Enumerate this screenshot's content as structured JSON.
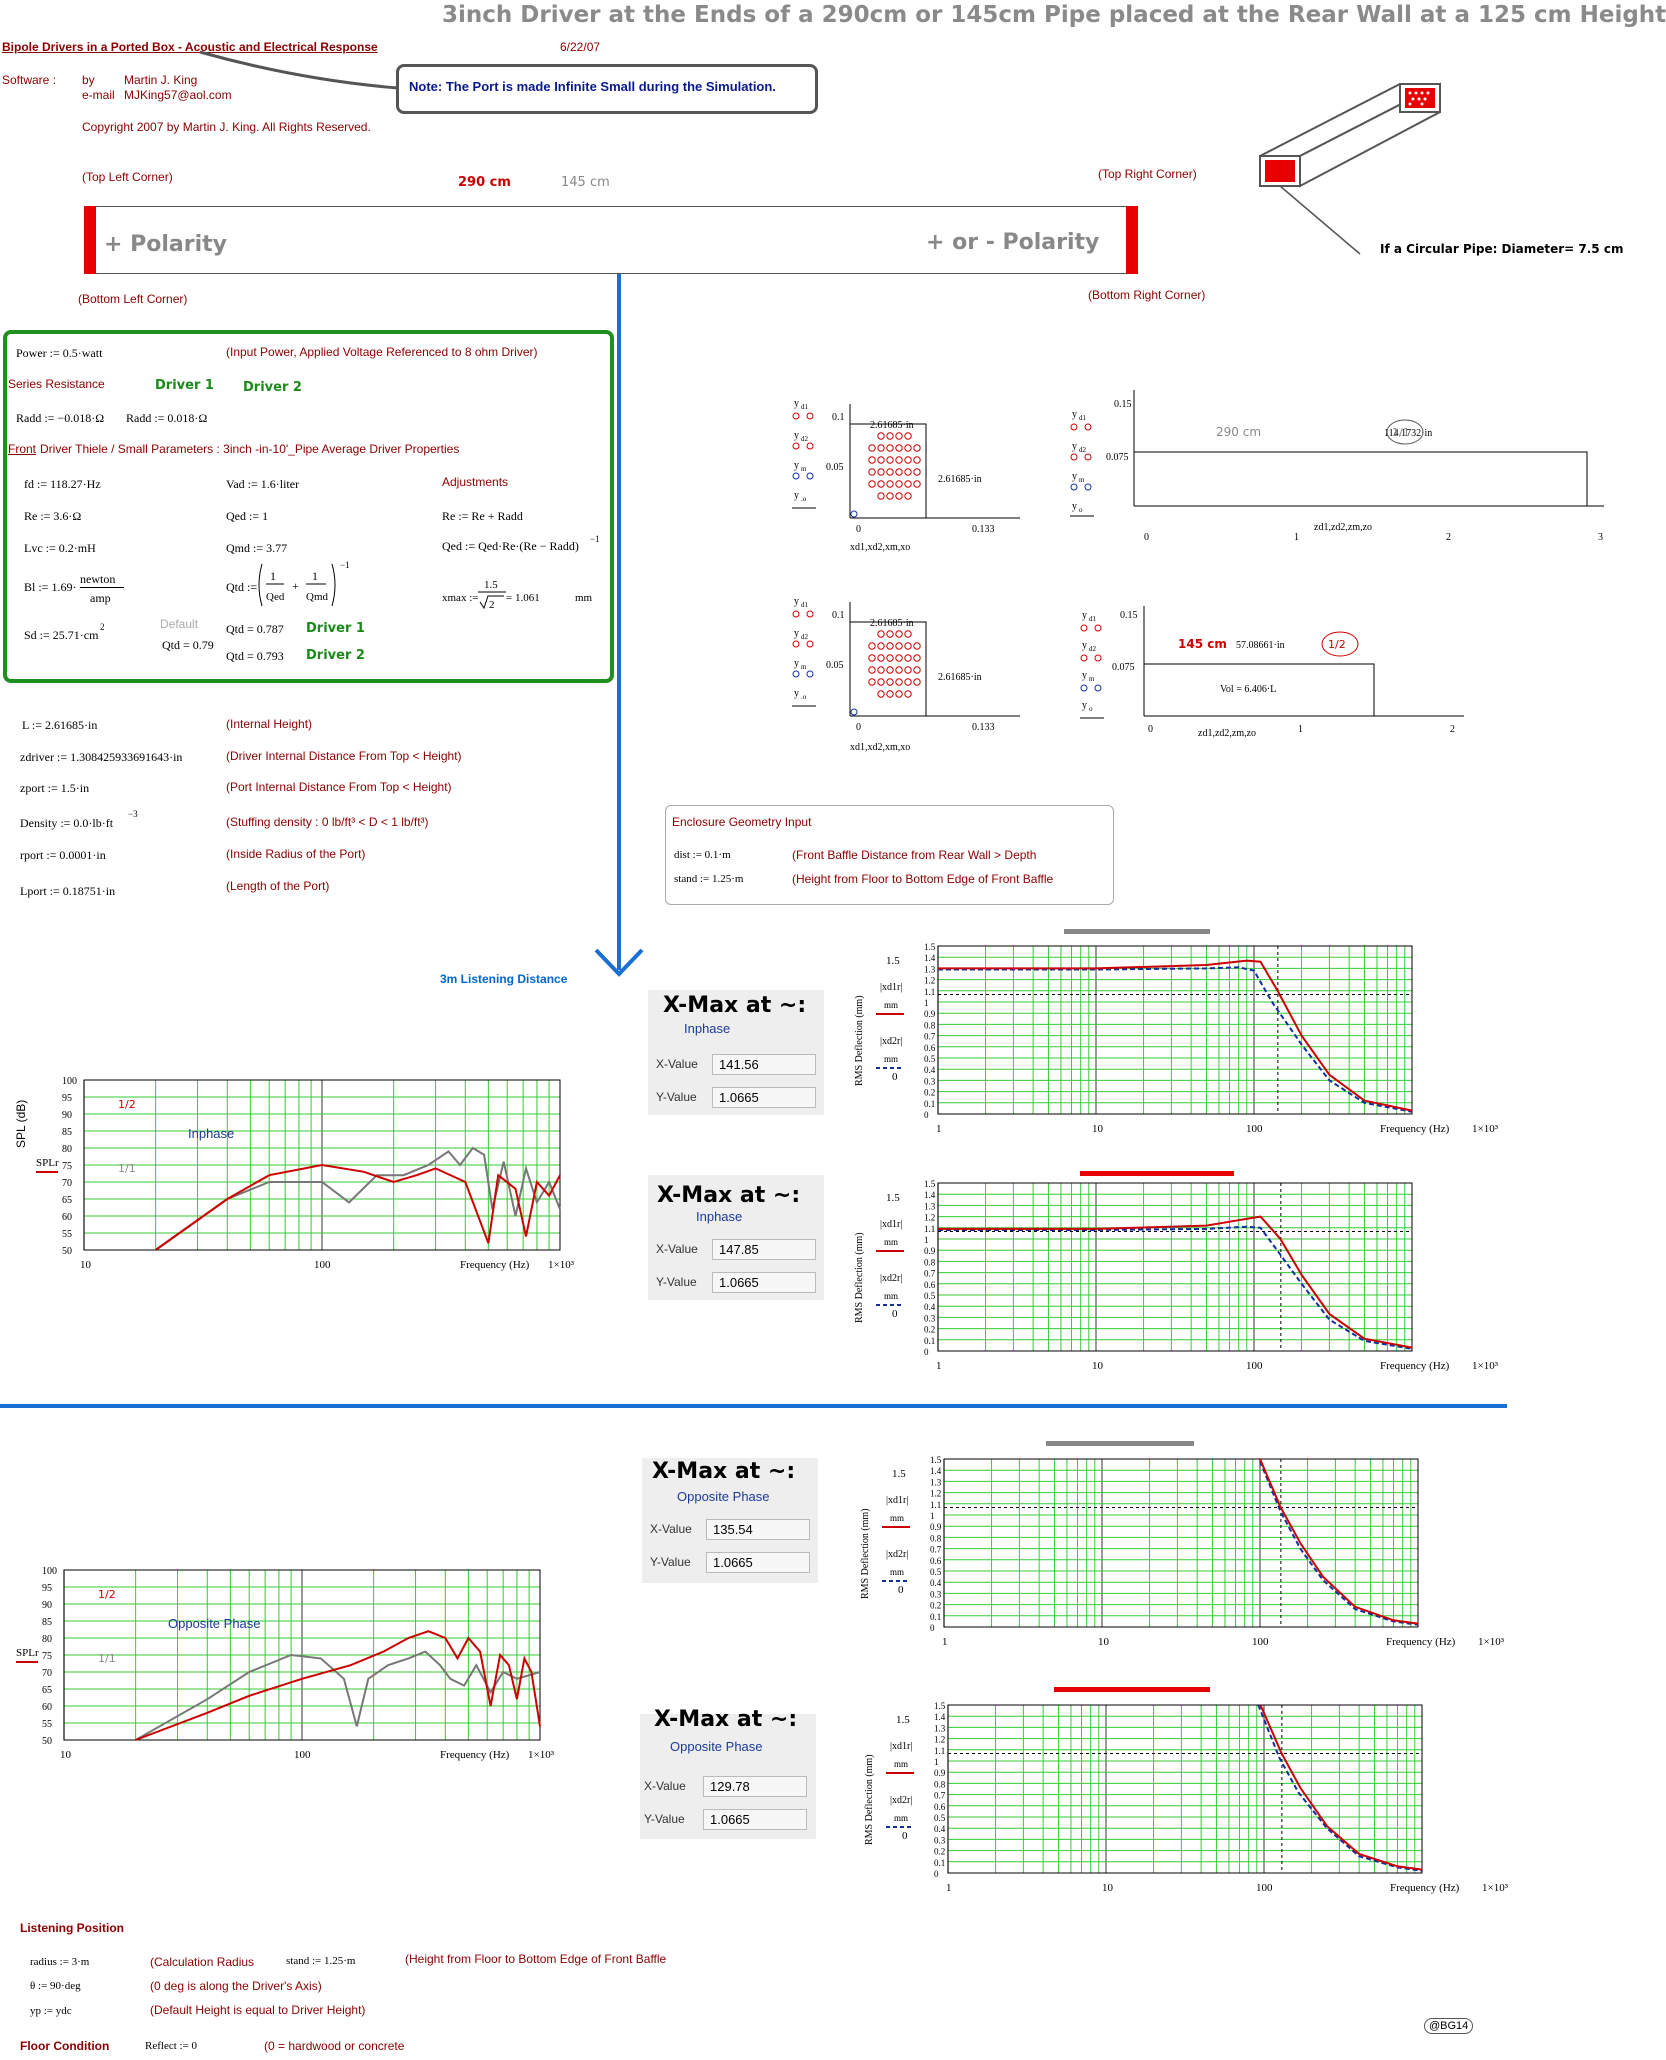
{
  "header": {
    "title": "3inch Driver at the Ends of a 290cm or 145cm Pipe placed at the Rear Wall at a 125 cm Height",
    "subtitle": "Bipole Drivers in a Ported Box - Acoustic and Electrical Response",
    "date": "6/22/07",
    "software_label": "Software :",
    "by_label": "by",
    "author": "Martin J. King",
    "email_label": "e-mail",
    "email": "MJKing57@aol.com",
    "copyright": "Copyright 2007 by Martin J. King. All Rights Reserved.",
    "note": "Note: The Port is made Infinite Small during the Simulation."
  },
  "pipe_diagram": {
    "top_left": "(Top Left Corner)",
    "top_right": "(Top Right Corner)",
    "bottom_left": "(Bottom Left Corner)",
    "bottom_right": "(Bottom Right Corner)",
    "length_a": "290 cm",
    "length_b": "145 cm",
    "left_label": "+ Polarity",
    "right_label": "+ or - Polarity",
    "diameter": "If a Circular Pipe: Diameter= 7.5 cm"
  },
  "params": {
    "power": "Power := 0.5·watt",
    "power_note": "(Input Power, Applied Voltage Referenced to 8 ohm Driver)",
    "series_resistance": "Series Resistance",
    "driver1": "Driver 1",
    "driver2": "Driver 2",
    "radd1": "Radd := −0.018·Ω",
    "radd2": "Radd := 0.018·Ω",
    "front_label": "Front",
    "front_desc": "Driver Thiele / Small Parameters : 3inch -in-10'_Pipe Average Driver Properties",
    "fd": "fd := 118.27·Hz",
    "vad": "Vad := 1.6·liter",
    "adjustments": "Adjustments",
    "re": "Re := 3.6·Ω",
    "qed": "Qed := 1",
    "re_adj": "Re := Re + Radd",
    "lvc": "Lvc := 0.2·mH",
    "qmd": "Qmd := 3.77",
    "qed_adj": "Qed := Qed·Re·(Re − Radd)",
    "bl": "Bl := 1.69·",
    "bl_unit_top": "newton",
    "bl_unit_bottom": "amp",
    "qtd": "Qtd :=",
    "xmax": "xmax :=",
    "xmax_val": "= 1.061",
    "xmax_unit": "mm",
    "sd": "Sd := 25.71·cm",
    "default_label": "Default",
    "qtd_default": "Qtd = 0.79",
    "qtd1": "Qtd = 0.787",
    "qtd2": "Qtd = 0.793",
    "qtd1_driver": "Driver 1",
    "qtd2_driver": "Driver 2"
  },
  "geometry": {
    "l": "L := 2.61685·in",
    "l_note": "(Internal Height)",
    "zdriver": "zdriver := 1.308425933691643·in",
    "zdriver_note": "(Driver Internal Distance From Top < Height)",
    "zport": "zport := 1.5·in",
    "zport_note": "(Port Internal Distance From Top < Height)",
    "density": "Density := 0.0·lb·ft",
    "density_note": "(Stuffing density : 0 lb/ft³ < D < 1 lb/ft³)",
    "rport": "rport := 0.0001·in",
    "rport_note": "(Inside Radius of the Port)",
    "lport": "Lport := 0.18751·in",
    "lport_note": "(Length of the Port)"
  },
  "enclosure": {
    "title": "Enclosure Geometry Input",
    "dist": "dist := 0.1·m",
    "dist_note": "(Front Baffle Distance from Rear Wall > Depth",
    "stand": "stand := 1.25·m",
    "stand_note": "(Height from Floor to Bottom Edge of Front Baffle"
  },
  "layout_plots": {
    "p1": {
      "ylabel": "yd1 yd2 ym yo",
      "xlabel": "xd1,xd2,xm,xo",
      "value": "2.61685·in",
      "side": "2.61685·in",
      "y1": "0.1",
      "y2": "0.05",
      "x0": "0",
      "x1": "0.133"
    },
    "p2": {
      "ylabel": "yd1 yd2 ym yo",
      "xlabel": "zd1,zd2,zm,zo",
      "len": "290 cm",
      "value": "114.1732·in",
      "badge": "1/1",
      "y1": "0.15",
      "y2": "0.075",
      "ticks": [
        "0",
        "1",
        "2",
        "3"
      ]
    },
    "p3": {
      "ylabel": "yd1 yd2 ym yo",
      "xlabel": "xd1,xd2,xm,xo",
      "value": "2.61685·in",
      "side": "2.61685·in",
      "y1": "0.1",
      "y2": "0.05",
      "x0": "0",
      "x1": "0.133"
    },
    "p4": {
      "ylabel": "yd1 yd2 ym yo",
      "xlabel": "zd1,zd2,zm,zo",
      "len": "145 cm",
      "value": "57.08661·in",
      "badge": "1/2",
      "vol": "Vol = 6.406·L",
      "y1": "0.15",
      "y2": "0.075",
      "ticks": [
        "0",
        "1",
        "2"
      ]
    }
  },
  "listening_distance": "3m Listening Distance",
  "spl_charts": [
    {
      "phase": "Inphase",
      "ylabel": "SPL (dB)",
      "series": "SPLr",
      "badge_a": "1/2",
      "badge_b": "1/1",
      "yticks": [
        "100",
        "95",
        "90",
        "85",
        "80",
        "75",
        "70",
        "65",
        "60",
        "55",
        "50"
      ],
      "xticks": [
        "10",
        "100"
      ],
      "xlabel": "Frequency (Hz)",
      "xmax": "1×10³"
    },
    {
      "phase": "Opposite Phase",
      "ylabel": "",
      "series": "SPLr",
      "badge_a": "1/2",
      "badge_b": "1/1",
      "yticks": [
        "100",
        "95",
        "90",
        "85",
        "80",
        "75",
        "70",
        "65",
        "60",
        "55",
        "50"
      ],
      "xticks": [
        "10",
        "100"
      ],
      "xlabel": "Frequency (Hz)",
      "xmax": "1×10³"
    }
  ],
  "xmax_panels": [
    {
      "title": "X-Max at ~:",
      "phase": "Inphase",
      "xlabel": "X-Value",
      "xvalue": "141.56",
      "ylabel": "Y-Value",
      "yvalue": "1.0665"
    },
    {
      "title": "X-Max at ~:",
      "phase": "Inphase",
      "xlabel": "X-Value",
      "xvalue": "147.85",
      "ylabel": "Y-Value",
      "yvalue": "1.0665"
    },
    {
      "title": "X-Max at ~:",
      "phase": "Opposite Phase",
      "xlabel": "X-Value",
      "xvalue": "135.54",
      "ylabel": "Y-Value",
      "yvalue": "1.0665"
    },
    {
      "title": "X-Max at ~:",
      "phase": "Opposite Phase",
      "xlabel": "X-Value",
      "xvalue": "129.78",
      "ylabel": "Y-Value",
      "yvalue": "1.0665"
    }
  ],
  "deflection_chart_labels": {
    "ylabel": "RMS Deflection (mm)",
    "s1": "|xd1r|",
    "s2": "|xd2r|",
    "unit": "mm",
    "xlabel": "Frequency (Hz)",
    "xmax": "1×10³",
    "yticks": [
      "1.5",
      "1.4",
      "1.3",
      "1.2",
      "1.1",
      "1",
      "0.9",
      "0.8",
      "0.7",
      "0.6",
      "0.5",
      "0.4",
      "0.3",
      "0.2",
      "0.1",
      "0"
    ],
    "xticks": [
      "1",
      "10",
      "100"
    ]
  },
  "listening": {
    "title": "Listening Position",
    "radius": "radius := 3·m",
    "radius_note": "(Calculation Radius",
    "stand": "stand := 1.25·m",
    "stand_note": "(Height from Floor to Bottom Edge of Front Baffle",
    "theta": "θ := 90·deg",
    "theta_note": "(0 deg is along the Driver's Axis)",
    "yp": "yp := ydc",
    "yp_note": "(Default Height is equal to Driver Height)",
    "floor": "Floor Condition",
    "reflect": "Reflect := 0",
    "reflect_note": "(0 = hardwood or concrete",
    "badge": "@BG14"
  },
  "chart_data": [
    {
      "type": "line",
      "title": "",
      "xlabel": "Frequency (Hz)",
      "ylabel": "SPL (dB)",
      "xscale": "log",
      "xlim": [
        10,
        1000
      ],
      "ylim": [
        50,
        100
      ],
      "series": [
        {
          "name": "1/2",
          "color": "#cc0000",
          "points": [
            [
              20,
              50
            ],
            [
              40,
              65
            ],
            [
              60,
              72
            ],
            [
              100,
              75
            ],
            [
              150,
              73
            ],
            [
              200,
              70
            ],
            [
              250,
              72
            ],
            [
              300,
              74
            ],
            [
              400,
              70
            ],
            [
              500,
              52
            ],
            [
              550,
              72
            ],
            [
              650,
              68
            ],
            [
              720,
              54
            ],
            [
              800,
              70
            ],
            [
              900,
              66
            ],
            [
              1000,
              72
            ]
          ]
        },
        {
          "name": "1/1",
          "color": "#777777",
          "points": [
            [
              20,
              50
            ],
            [
              40,
              65
            ],
            [
              60,
              70
            ],
            [
              100,
              70
            ],
            [
              130,
              64
            ],
            [
              170,
              72
            ],
            [
              220,
              72
            ],
            [
              280,
              75
            ],
            [
              340,
              79
            ],
            [
              380,
              75
            ],
            [
              430,
              80
            ],
            [
              480,
              78
            ],
            [
              520,
              62
            ],
            [
              580,
              76
            ],
            [
              650,
              60
            ],
            [
              720,
              74
            ],
            [
              800,
              64
            ],
            [
              900,
              70
            ],
            [
              1000,
              62
            ]
          ]
        }
      ]
    },
    {
      "type": "line",
      "title": "",
      "xlabel": "Frequency (Hz)",
      "xscale": "log",
      "xlim": [
        10,
        1000
      ],
      "ylim": [
        50,
        100
      ],
      "series": [
        {
          "name": "1/2",
          "color": "#cc0000",
          "points": [
            [
              20,
              50
            ],
            [
              40,
              58
            ],
            [
              60,
              63
            ],
            [
              100,
              68
            ],
            [
              160,
              72
            ],
            [
              220,
              76
            ],
            [
              280,
              80
            ],
            [
              340,
              82
            ],
            [
              400,
              80
            ],
            [
              450,
              74
            ],
            [
              500,
              80
            ],
            [
              560,
              76
            ],
            [
              620,
              60
            ],
            [
              680,
              75
            ],
            [
              740,
              72
            ],
            [
              800,
              62
            ],
            [
              860,
              74
            ],
            [
              920,
              70
            ],
            [
              1000,
              54
            ]
          ]
        },
        {
          "name": "1/1",
          "color": "#777777",
          "points": [
            [
              20,
              50
            ],
            [
              40,
              62
            ],
            [
              60,
              70
            ],
            [
              90,
              75
            ],
            [
              120,
              74
            ],
            [
              150,
              68
            ],
            [
              170,
              54
            ],
            [
              190,
              68
            ],
            [
              230,
              72
            ],
            [
              280,
              74
            ],
            [
              330,
              76
            ],
            [
              380,
              72
            ],
            [
              420,
              68
            ],
            [
              480,
              66
            ],
            [
              540,
              72
            ],
            [
              620,
              64
            ],
            [
              700,
              70
            ],
            [
              800,
              68
            ],
            [
              1000,
              70
            ]
          ]
        }
      ]
    },
    {
      "type": "line",
      "xlabel": "Frequency (Hz)",
      "ylabel": "RMS Deflection (mm)",
      "xscale": "log",
      "xlim": [
        1,
        1000
      ],
      "ylim": [
        0,
        1.5
      ],
      "xmax_marker": 141.56,
      "series": [
        {
          "name": "|xd1r|",
          "color": "#cc0000",
          "points": [
            [
              1,
              1.3
            ],
            [
              10,
              1.3
            ],
            [
              50,
              1.33
            ],
            [
              90,
              1.37
            ],
            [
              110,
              1.36
            ],
            [
              141,
              1.1
            ],
            [
              200,
              0.7
            ],
            [
              300,
              0.35
            ],
            [
              500,
              0.12
            ],
            [
              1000,
              0.03
            ]
          ]
        },
        {
          "name": "|xd2r|",
          "color": "#1030a0",
          "points": [
            [
              1,
              1.29
            ],
            [
              10,
              1.29
            ],
            [
              50,
              1.3
            ],
            [
              80,
              1.31
            ],
            [
              100,
              1.28
            ],
            [
              130,
              1.0
            ],
            [
              200,
              0.62
            ],
            [
              300,
              0.3
            ],
            [
              500,
              0.1
            ],
            [
              1000,
              0.02
            ]
          ]
        }
      ]
    },
    {
      "type": "line",
      "xlabel": "Frequency (Hz)",
      "ylabel": "RMS Deflection (mm)",
      "xscale": "log",
      "xlim": [
        1,
        1000
      ],
      "ylim": [
        0,
        1.5
      ],
      "xmax_marker": 147.85,
      "series": [
        {
          "name": "|xd1r|",
          "color": "#cc0000",
          "points": [
            [
              1,
              1.09
            ],
            [
              10,
              1.09
            ],
            [
              50,
              1.12
            ],
            [
              90,
              1.18
            ],
            [
              110,
              1.2
            ],
            [
              147,
              1.0
            ],
            [
              200,
              0.68
            ],
            [
              300,
              0.33
            ],
            [
              500,
              0.11
            ],
            [
              1000,
              0.03
            ]
          ]
        },
        {
          "name": "|xd2r|",
          "color": "#1030a0",
          "points": [
            [
              1,
              1.08
            ],
            [
              10,
              1.08
            ],
            [
              50,
              1.09
            ],
            [
              90,
              1.11
            ],
            [
              110,
              1.1
            ],
            [
              140,
              0.9
            ],
            [
              200,
              0.6
            ],
            [
              300,
              0.28
            ],
            [
              500,
              0.09
            ],
            [
              1000,
              0.02
            ]
          ]
        }
      ]
    },
    {
      "type": "line",
      "xlabel": "Frequency (Hz)",
      "ylabel": "RMS Deflection (mm)",
      "xscale": "log",
      "xlim": [
        1,
        1000
      ],
      "ylim": [
        0,
        1.5
      ],
      "xmax_marker": 135.54,
      "series": [
        {
          "name": "|xd1r|",
          "color": "#cc0000",
          "points": [
            [
              100,
              1.5
            ],
            [
              135,
              1.07
            ],
            [
              180,
              0.75
            ],
            [
              250,
              0.45
            ],
            [
              400,
              0.18
            ],
            [
              700,
              0.06
            ],
            [
              1000,
              0.03
            ]
          ]
        },
        {
          "name": "|xd2r|",
          "color": "#1030a0",
          "points": [
            [
              100,
              1.48
            ],
            [
              135,
              1.03
            ],
            [
              180,
              0.7
            ],
            [
              250,
              0.42
            ],
            [
              400,
              0.16
            ],
            [
              700,
              0.05
            ],
            [
              1000,
              0.02
            ]
          ]
        }
      ]
    },
    {
      "type": "line",
      "xlabel": "Frequency (Hz)",
      "ylabel": "RMS Deflection (mm)",
      "xscale": "log",
      "xlim": [
        1,
        1000
      ],
      "ylim": [
        0,
        1.5
      ],
      "xmax_marker": 129.78,
      "series": [
        {
          "name": "|xd1r|",
          "color": "#cc0000",
          "points": [
            [
              95,
              1.5
            ],
            [
              129,
              1.07
            ],
            [
              170,
              0.76
            ],
            [
              250,
              0.42
            ],
            [
              400,
              0.17
            ],
            [
              700,
              0.06
            ],
            [
              1000,
              0.03
            ]
          ]
        },
        {
          "name": "|xd2r|",
          "color": "#1030a0",
          "points": [
            [
              92,
              1.5
            ],
            [
              125,
              1.03
            ],
            [
              165,
              0.72
            ],
            [
              250,
              0.4
            ],
            [
              400,
              0.15
            ],
            [
              700,
              0.05
            ],
            [
              1000,
              0.02
            ]
          ]
        }
      ]
    }
  ]
}
